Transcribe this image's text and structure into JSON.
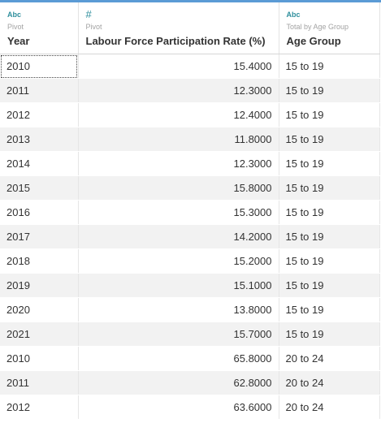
{
  "columns": [
    {
      "type_icon": "Abc",
      "icon_name": "string-type-icon",
      "sub": "Pivot",
      "name": "Year"
    },
    {
      "type_icon": "#",
      "icon_name": "number-type-icon",
      "sub": "Pivot",
      "name": "Labour Force Participation Rate (%)"
    },
    {
      "type_icon": "Abc",
      "icon_name": "string-type-icon",
      "sub": "Total by Age Group",
      "name": "Age Group"
    }
  ],
  "rows": [
    [
      "2010",
      "15.4000",
      "15 to 19"
    ],
    [
      "2011",
      "12.3000",
      "15 to 19"
    ],
    [
      "2012",
      "12.4000",
      "15 to 19"
    ],
    [
      "2013",
      "11.8000",
      "15 to 19"
    ],
    [
      "2014",
      "12.3000",
      "15 to 19"
    ],
    [
      "2015",
      "15.8000",
      "15 to 19"
    ],
    [
      "2016",
      "15.3000",
      "15 to 19"
    ],
    [
      "2017",
      "14.2000",
      "15 to 19"
    ],
    [
      "2018",
      "15.2000",
      "15 to 19"
    ],
    [
      "2019",
      "15.1000",
      "15 to 19"
    ],
    [
      "2020",
      "13.8000",
      "15 to 19"
    ],
    [
      "2021",
      "15.7000",
      "15 to 19"
    ],
    [
      "2010",
      "65.8000",
      "20 to 24"
    ],
    [
      "2011",
      "62.8000",
      "20 to 24"
    ],
    [
      "2012",
      "63.6000",
      "20 to 24"
    ]
  ],
  "colors": {
    "accent": "#5b9bd5",
    "type_icon": "#2f8f9d",
    "alt_row": "#f2f2f2"
  }
}
